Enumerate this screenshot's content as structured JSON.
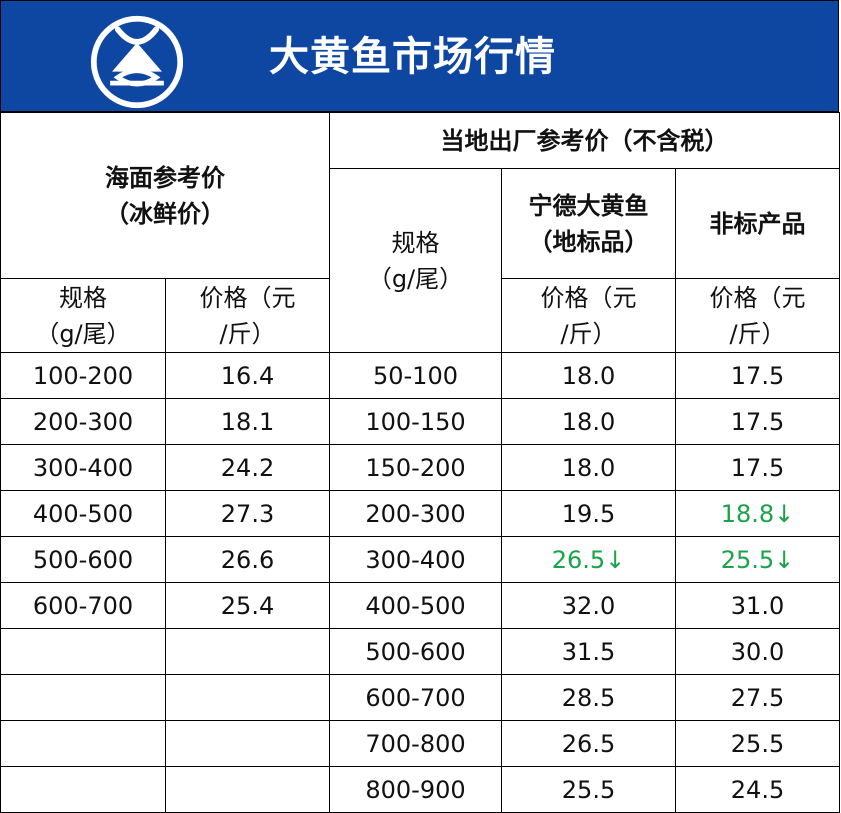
{
  "header": {
    "title": "大黄鱼市场行情"
  },
  "table": {
    "sea": {
      "title": "海面参考价",
      "subtitle": "（冰鲜价）",
      "spec_line1": "规格",
      "spec_line2": "（g/尾）",
      "price_line1": "价格（元",
      "price_line2": "/斤）"
    },
    "local": {
      "title": "当地出厂参考价（不含税）",
      "spec_line1": "规格",
      "spec_line2": "（g/尾）",
      "ningde_line1": "宁德大黄鱼",
      "ningde_line2": "（地标品）",
      "nonstd": "非标产品",
      "price_line1": "价格（元",
      "price_line2": "/斤）"
    },
    "rows": [
      {
        "sea_spec": "100-200",
        "sea_price": "16.4",
        "spec": "50-100",
        "ningde": "18.0",
        "nonstd": "17.5"
      },
      {
        "sea_spec": "200-300",
        "sea_price": "18.1",
        "spec": "100-150",
        "ningde": "18.0",
        "nonstd": "17.5"
      },
      {
        "sea_spec": "300-400",
        "sea_price": "24.2",
        "spec": "150-200",
        "ningde": "18.0",
        "nonstd": "17.5"
      },
      {
        "sea_spec": "400-500",
        "sea_price": "27.3",
        "spec": "200-300",
        "ningde": "19.5",
        "nonstd": "18.8↓"
      },
      {
        "sea_spec": "500-600",
        "sea_price": "26.6",
        "spec": "300-400",
        "ningde": "26.5↓",
        "nonstd": "25.5↓"
      },
      {
        "sea_spec": "600-700",
        "sea_price": "25.4",
        "spec": "400-500",
        "ningde": "32.0",
        "nonstd": "31.0"
      },
      {
        "sea_spec": "",
        "sea_price": "",
        "spec": "500-600",
        "ningde": "31.5",
        "nonstd": "30.0"
      },
      {
        "sea_spec": "",
        "sea_price": "",
        "spec": "600-700",
        "ningde": "28.5",
        "nonstd": "27.5"
      },
      {
        "sea_spec": "",
        "sea_price": "",
        "spec": "700-800",
        "ningde": "26.5",
        "nonstd": "25.5"
      },
      {
        "sea_spec": "",
        "sea_price": "",
        "spec": "800-900",
        "ningde": "25.5",
        "nonstd": "24.5"
      }
    ]
  },
  "colors": {
    "header_bg": "#0e47a1",
    "price_down": "#1aa34a"
  },
  "icons": {
    "logo": "fish-circle-logo-icon"
  }
}
